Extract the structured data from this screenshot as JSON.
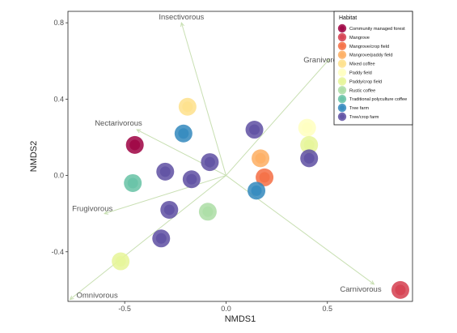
{
  "chart_data": {
    "type": "scatter",
    "xlabel": "NMDS1",
    "ylabel": "NMDS2",
    "xlim": [
      -0.78,
      0.92
    ],
    "ylim": [
      -0.66,
      0.86
    ],
    "x_ticks": [
      "-0.5",
      "0.0",
      "0.5"
    ],
    "y_ticks": [
      "-0.4",
      "0.0",
      "0.4",
      "0.8"
    ],
    "grid": false,
    "legend_position": "top-right",
    "legend_title": "Habitat",
    "habitats": [
      {
        "name": "Community managed forest",
        "color": "#9e0142"
      },
      {
        "name": "Mangrove",
        "color": "#d53e4f"
      },
      {
        "name": "Mangrove/crop field",
        "color": "#f46d43"
      },
      {
        "name": "Mangrove/paddy field",
        "color": "#fdae61"
      },
      {
        "name": "Mixed coffee",
        "color": "#fee08b"
      },
      {
        "name": "Paddy field",
        "color": "#ffffbf"
      },
      {
        "name": "Paddy/crop field",
        "color": "#e6f598"
      },
      {
        "name": "Rustic coffee",
        "color": "#abdda4"
      },
      {
        "name": "Traditional polyculture coffee",
        "color": "#66c2a5"
      },
      {
        "name": "Tree farm",
        "color": "#3288bd"
      },
      {
        "name": "Tree/crop farm",
        "color": "#5e4fa2"
      }
    ],
    "points": [
      {
        "habitat": "Community managed forest",
        "x": -0.45,
        "y": 0.16
      },
      {
        "habitat": "Mixed coffee",
        "x": -0.19,
        "y": 0.36
      },
      {
        "habitat": "Tree farm",
        "x": -0.21,
        "y": 0.22
      },
      {
        "habitat": "Tree/crop farm",
        "x": 0.14,
        "y": 0.24
      },
      {
        "habitat": "Paddy field",
        "x": 0.4,
        "y": 0.25
      },
      {
        "habitat": "Paddy/crop field",
        "x": 0.41,
        "y": 0.16
      },
      {
        "habitat": "Tree/crop farm",
        "x": 0.41,
        "y": 0.09
      },
      {
        "habitat": "Mangrove/paddy field",
        "x": 0.17,
        "y": 0.09
      },
      {
        "habitat": "Tree/crop farm",
        "x": -0.08,
        "y": 0.07
      },
      {
        "habitat": "Tree/crop farm",
        "x": -0.3,
        "y": 0.02
      },
      {
        "habitat": "Tree/crop farm",
        "x": -0.17,
        "y": -0.02
      },
      {
        "habitat": "Traditional polyculture coffee",
        "x": -0.46,
        "y": -0.04
      },
      {
        "habitat": "Mangrove/crop field",
        "x": 0.19,
        "y": -0.01
      },
      {
        "habitat": "Tree farm",
        "x": 0.15,
        "y": -0.08
      },
      {
        "habitat": "Tree/crop farm",
        "x": -0.28,
        "y": -0.18
      },
      {
        "habitat": "Rustic coffee",
        "x": -0.09,
        "y": -0.19
      },
      {
        "habitat": "Tree/crop farm",
        "x": -0.32,
        "y": -0.33
      },
      {
        "habitat": "Paddy/crop field",
        "x": -0.52,
        "y": -0.45
      },
      {
        "habitat": "Mangrove",
        "x": 0.86,
        "y": -0.6
      }
    ],
    "vectors": [
      {
        "label": "Insectivorous",
        "x": -0.22,
        "y": 0.8
      },
      {
        "label": "Granivorous",
        "x": 0.51,
        "y": 0.61
      },
      {
        "label": "Nectarivorous",
        "x": -0.44,
        "y": 0.24
      },
      {
        "label": "Frugivorous",
        "x": -0.6,
        "y": -0.2
      },
      {
        "label": "Carnivorous",
        "x": 0.73,
        "y": -0.57
      },
      {
        "label": "Omnivorous",
        "x": -0.77,
        "y": -0.65
      }
    ]
  }
}
